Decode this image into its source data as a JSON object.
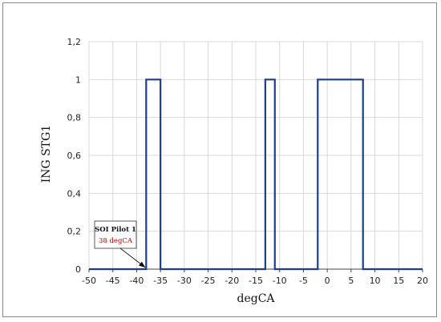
{
  "chart_data": {
    "type": "line",
    "title": "",
    "xlabel": "degCA",
    "ylabel": "ING STG1",
    "xlim": [
      -50,
      20
    ],
    "ylim": [
      0,
      1.2
    ],
    "x_ticks": [
      -50,
      -45,
      -40,
      -35,
      -30,
      -25,
      -20,
      -15,
      -10,
      -5,
      0,
      5,
      10,
      15,
      20
    ],
    "y_ticks": [
      0,
      0.2,
      0.4,
      0.6,
      0.8,
      1,
      1.2
    ],
    "y_tick_labels": [
      "0",
      "0,2",
      "0,4",
      "0,6",
      "0,8",
      "1",
      "1,2"
    ],
    "grid": true,
    "line_color": "#1f3d8c",
    "series": [
      {
        "x": [
          -50,
          -38,
          -38,
          -35,
          -35,
          -13,
          -13,
          -11,
          -11,
          -2,
          -2,
          7.5,
          7.5,
          20
        ],
        "y": [
          0,
          0,
          1,
          1,
          0,
          0,
          1,
          1,
          0,
          0,
          1,
          1,
          0,
          0
        ]
      }
    ],
    "annotations": [
      {
        "title": "SOI Pilot 1",
        "value": "38 degCA",
        "points_to": [
          -38,
          0
        ]
      }
    ]
  }
}
